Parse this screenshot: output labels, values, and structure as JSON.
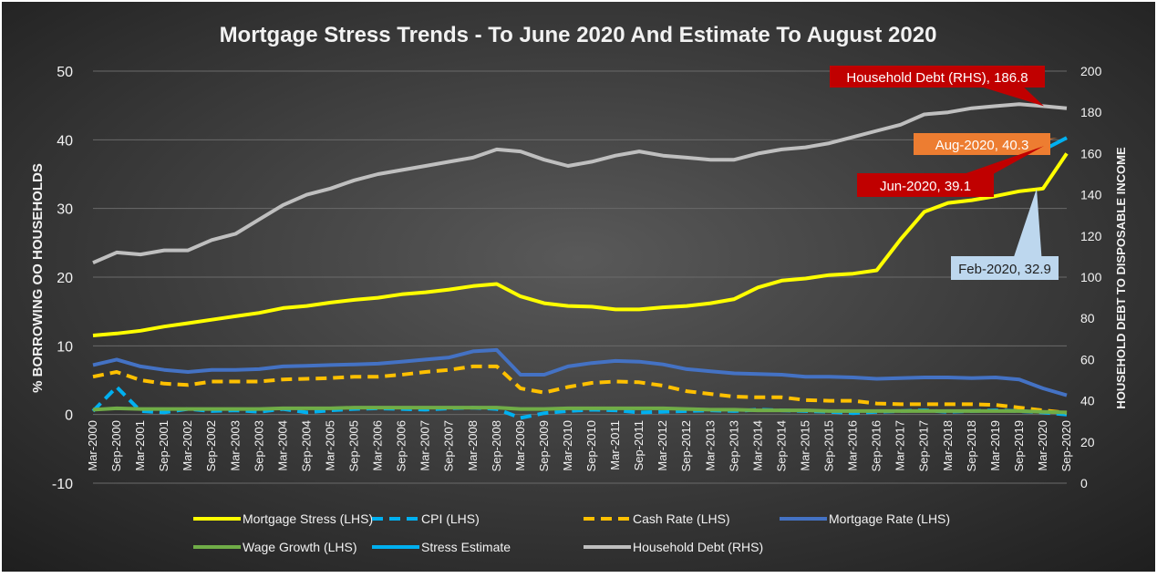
{
  "chart_data": {
    "type": "line",
    "title": "Mortgage Stress Trends - To June 2020 And Estimate To August 2020",
    "ylabel": "% BORROWING OO HOUSEHOLDS",
    "y2label": "HOUSEHOLD DEBT TO DISPOSABLE INCOME",
    "ylim": [
      -10,
      50
    ],
    "y2lim": [
      0,
      200
    ],
    "yticks": [
      "50",
      "40",
      "30",
      "20",
      "10",
      "0",
      "-10"
    ],
    "y2ticks": [
      "200",
      "180",
      "160",
      "140",
      "120",
      "100",
      "80",
      "60",
      "40",
      "20",
      "0"
    ],
    "x_labels": [
      "Mar-2000",
      "Sep-2000",
      "Mar-2001",
      "Sep-2001",
      "Mar-2002",
      "Sep-2002",
      "Mar-2003",
      "Sep-2003",
      "Mar-2004",
      "Sep-2004",
      "Mar-2005",
      "Sep-2005",
      "Mar-2006",
      "Sep-2006",
      "Mar-2007",
      "Sep-2007",
      "Mar-2008",
      "Sep-2008",
      "Mar-2009",
      "Sep-2009",
      "Mar-2010",
      "Sep-2010",
      "Mar-2011",
      "Sep-2011",
      "Mar-2012",
      "Sep-2012",
      "Mar-2013",
      "Sep-2013",
      "Mar-2014",
      "Sep-2014",
      "Mar-2015",
      "Sep-2015",
      "Mar-2016",
      "Sep-2016",
      "Mar-2017",
      "Sep-2017",
      "Mar-2018",
      "Sep-2018",
      "Mar-2019",
      "Sep-2019",
      "Mar-2020",
      "Sep-2020"
    ],
    "series": [
      {
        "name": "Household Debt (RHS)",
        "axis": "right",
        "color": "#bfbfbf",
        "dash": false,
        "values": [
          107,
          112,
          111,
          113,
          113,
          118,
          121,
          128,
          135,
          140,
          143,
          147,
          150,
          152,
          154,
          156,
          158,
          162,
          161,
          157,
          154,
          156,
          159,
          161,
          159,
          158,
          157,
          157,
          160,
          162,
          163,
          165,
          168,
          171,
          174,
          179,
          180,
          182,
          183,
          184,
          183,
          182
        ]
      },
      {
        "name": "Mortgage Stress (LHS)",
        "axis": "left",
        "color": "#ffff00",
        "dash": false,
        "values": [
          11.5,
          11.8,
          12.2,
          12.8,
          13.3,
          13.8,
          14.3,
          14.8,
          15.5,
          15.8,
          16.3,
          16.7,
          17.0,
          17.5,
          17.8,
          18.2,
          18.7,
          19.0,
          17.2,
          16.2,
          15.8,
          15.7,
          15.3,
          15.3,
          15.6,
          15.8,
          16.2,
          16.8,
          18.5,
          19.5,
          19.8,
          20.3,
          20.5,
          21.0,
          25.5,
          29.5,
          30.8,
          31.2,
          31.8,
          32.5,
          32.9,
          38.0
        ]
      },
      {
        "name": "CPI (LHS)",
        "axis": "left",
        "color": "#00b0f0",
        "dash": true,
        "values": [
          0.5,
          4.0,
          0.5,
          0.3,
          0.8,
          0.5,
          0.6,
          0.4,
          0.8,
          0.3,
          0.6,
          0.8,
          0.9,
          0.8,
          0.7,
          0.9,
          1.0,
          0.8,
          -0.5,
          0.2,
          0.5,
          0.7,
          0.6,
          0.3,
          0.4,
          0.5,
          0.6,
          0.5,
          0.7,
          0.6,
          0.5,
          0.4,
          0.2,
          0.4,
          0.5,
          0.6,
          0.4,
          0.5,
          0.6,
          0.5,
          0.3,
          0.0
        ]
      },
      {
        "name": "Cash Rate (LHS)",
        "axis": "left",
        "color": "#ffc000",
        "dash": true,
        "values": [
          5.5,
          6.2,
          5.0,
          4.5,
          4.3,
          4.8,
          4.8,
          4.8,
          5.1,
          5.2,
          5.3,
          5.5,
          5.5,
          5.8,
          6.2,
          6.5,
          7.0,
          7.0,
          3.8,
          3.2,
          4.0,
          4.6,
          4.8,
          4.7,
          4.2,
          3.4,
          3.0,
          2.6,
          2.5,
          2.5,
          2.1,
          2.0,
          2.0,
          1.6,
          1.5,
          1.5,
          1.5,
          1.5,
          1.4,
          1.0,
          0.6,
          0.25
        ]
      },
      {
        "name": "Mortgage Rate (LHS)",
        "axis": "left",
        "color": "#4472c4",
        "dash": false,
        "values": [
          7.2,
          8.0,
          7.0,
          6.5,
          6.2,
          6.5,
          6.5,
          6.6,
          7.0,
          7.1,
          7.2,
          7.3,
          7.4,
          7.7,
          8.0,
          8.3,
          9.2,
          9.4,
          5.8,
          5.8,
          7.0,
          7.5,
          7.8,
          7.7,
          7.3,
          6.6,
          6.3,
          6.0,
          5.9,
          5.8,
          5.5,
          5.5,
          5.4,
          5.2,
          5.3,
          5.4,
          5.4,
          5.3,
          5.4,
          5.1,
          3.8,
          2.8
        ]
      },
      {
        "name": "Wage Growth (LHS)",
        "axis": "left",
        "color": "#70ad47",
        "dash": false,
        "values": [
          0.7,
          0.9,
          0.8,
          0.8,
          0.8,
          0.8,
          0.8,
          0.8,
          0.9,
          0.9,
          0.9,
          1.0,
          1.0,
          1.0,
          1.0,
          1.0,
          1.0,
          1.0,
          0.8,
          0.8,
          0.9,
          0.9,
          0.9,
          0.9,
          0.9,
          0.8,
          0.7,
          0.7,
          0.6,
          0.6,
          0.6,
          0.5,
          0.5,
          0.5,
          0.5,
          0.5,
          0.5,
          0.5,
          0.5,
          0.5,
          0.4,
          0.3
        ]
      },
      {
        "name": "Stress Estimate",
        "axis": "left",
        "color": "#00b0f0",
        "dash": false,
        "values": [
          null,
          null,
          null,
          null,
          null,
          null,
          null,
          null,
          null,
          null,
          null,
          null,
          null,
          null,
          null,
          null,
          null,
          null,
          null,
          null,
          null,
          null,
          null,
          null,
          null,
          null,
          null,
          null,
          null,
          null,
          null,
          null,
          null,
          null,
          null,
          null,
          null,
          null,
          null,
          null,
          38.5,
          40.3
        ]
      }
    ],
    "annotations": [
      {
        "text": "Household Debt (RHS), 186.8",
        "bg": "#c00000",
        "fg": "#ffffff"
      },
      {
        "text": "Aug-2020, 40.3",
        "bg": "#ed7d31",
        "fg": "#ffffff"
      },
      {
        "text": "Jun-2020, 39.1",
        "bg": "#c00000",
        "fg": "#ffffff"
      },
      {
        "text": "Feb-2020, 32.9",
        "bg": "#bdd7ee",
        "fg": "#1f1f1f"
      }
    ],
    "legend": [
      {
        "label": "Mortgage Stress (LHS)",
        "color": "#ffff00",
        "dash": false
      },
      {
        "label": "CPI (LHS)",
        "color": "#00b0f0",
        "dash": true
      },
      {
        "label": "Cash Rate (LHS)",
        "color": "#ffc000",
        "dash": true
      },
      {
        "label": "Mortgage Rate (LHS)",
        "color": "#4472c4",
        "dash": false
      },
      {
        "label": "Wage Growth (LHS)",
        "color": "#70ad47",
        "dash": false
      },
      {
        "label": "Stress Estimate",
        "color": "#00b0f0",
        "dash": false
      },
      {
        "label": "Household Debt (RHS)",
        "color": "#bfbfbf",
        "dash": false
      }
    ]
  }
}
